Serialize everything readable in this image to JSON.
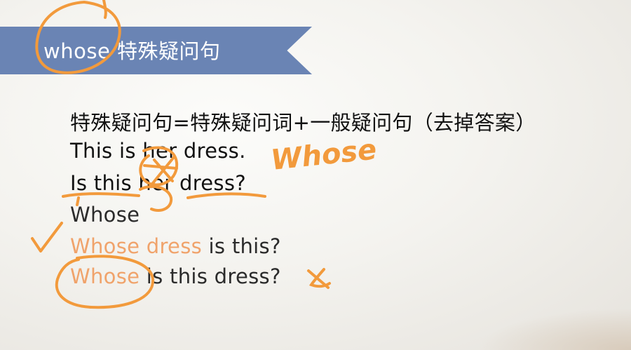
{
  "title": {
    "text": "whose 特殊疑问句"
  },
  "lines": {
    "formula": "特殊疑问句=特殊疑问词+一般疑问句（去掉答案）",
    "sentence1": "This is her dress.",
    "sentence2_is": "Is this ",
    "sentence2_her": "her",
    "sentence2_rest": " dress?",
    "whose_word": "Whose",
    "q1_highlight": "Whose dress",
    "q1_rest": " is this?",
    "q2_highlight": "Whose",
    "q2_rest": " is this dress?"
  },
  "annotations": {
    "handwritten_word": "Whose"
  },
  "colors": {
    "banner": "#6a84b4",
    "highlight_text": "#f0a36b",
    "ink": "#f29a3c"
  },
  "icons": [
    "check-mark-icon",
    "cross-mark-icon"
  ]
}
